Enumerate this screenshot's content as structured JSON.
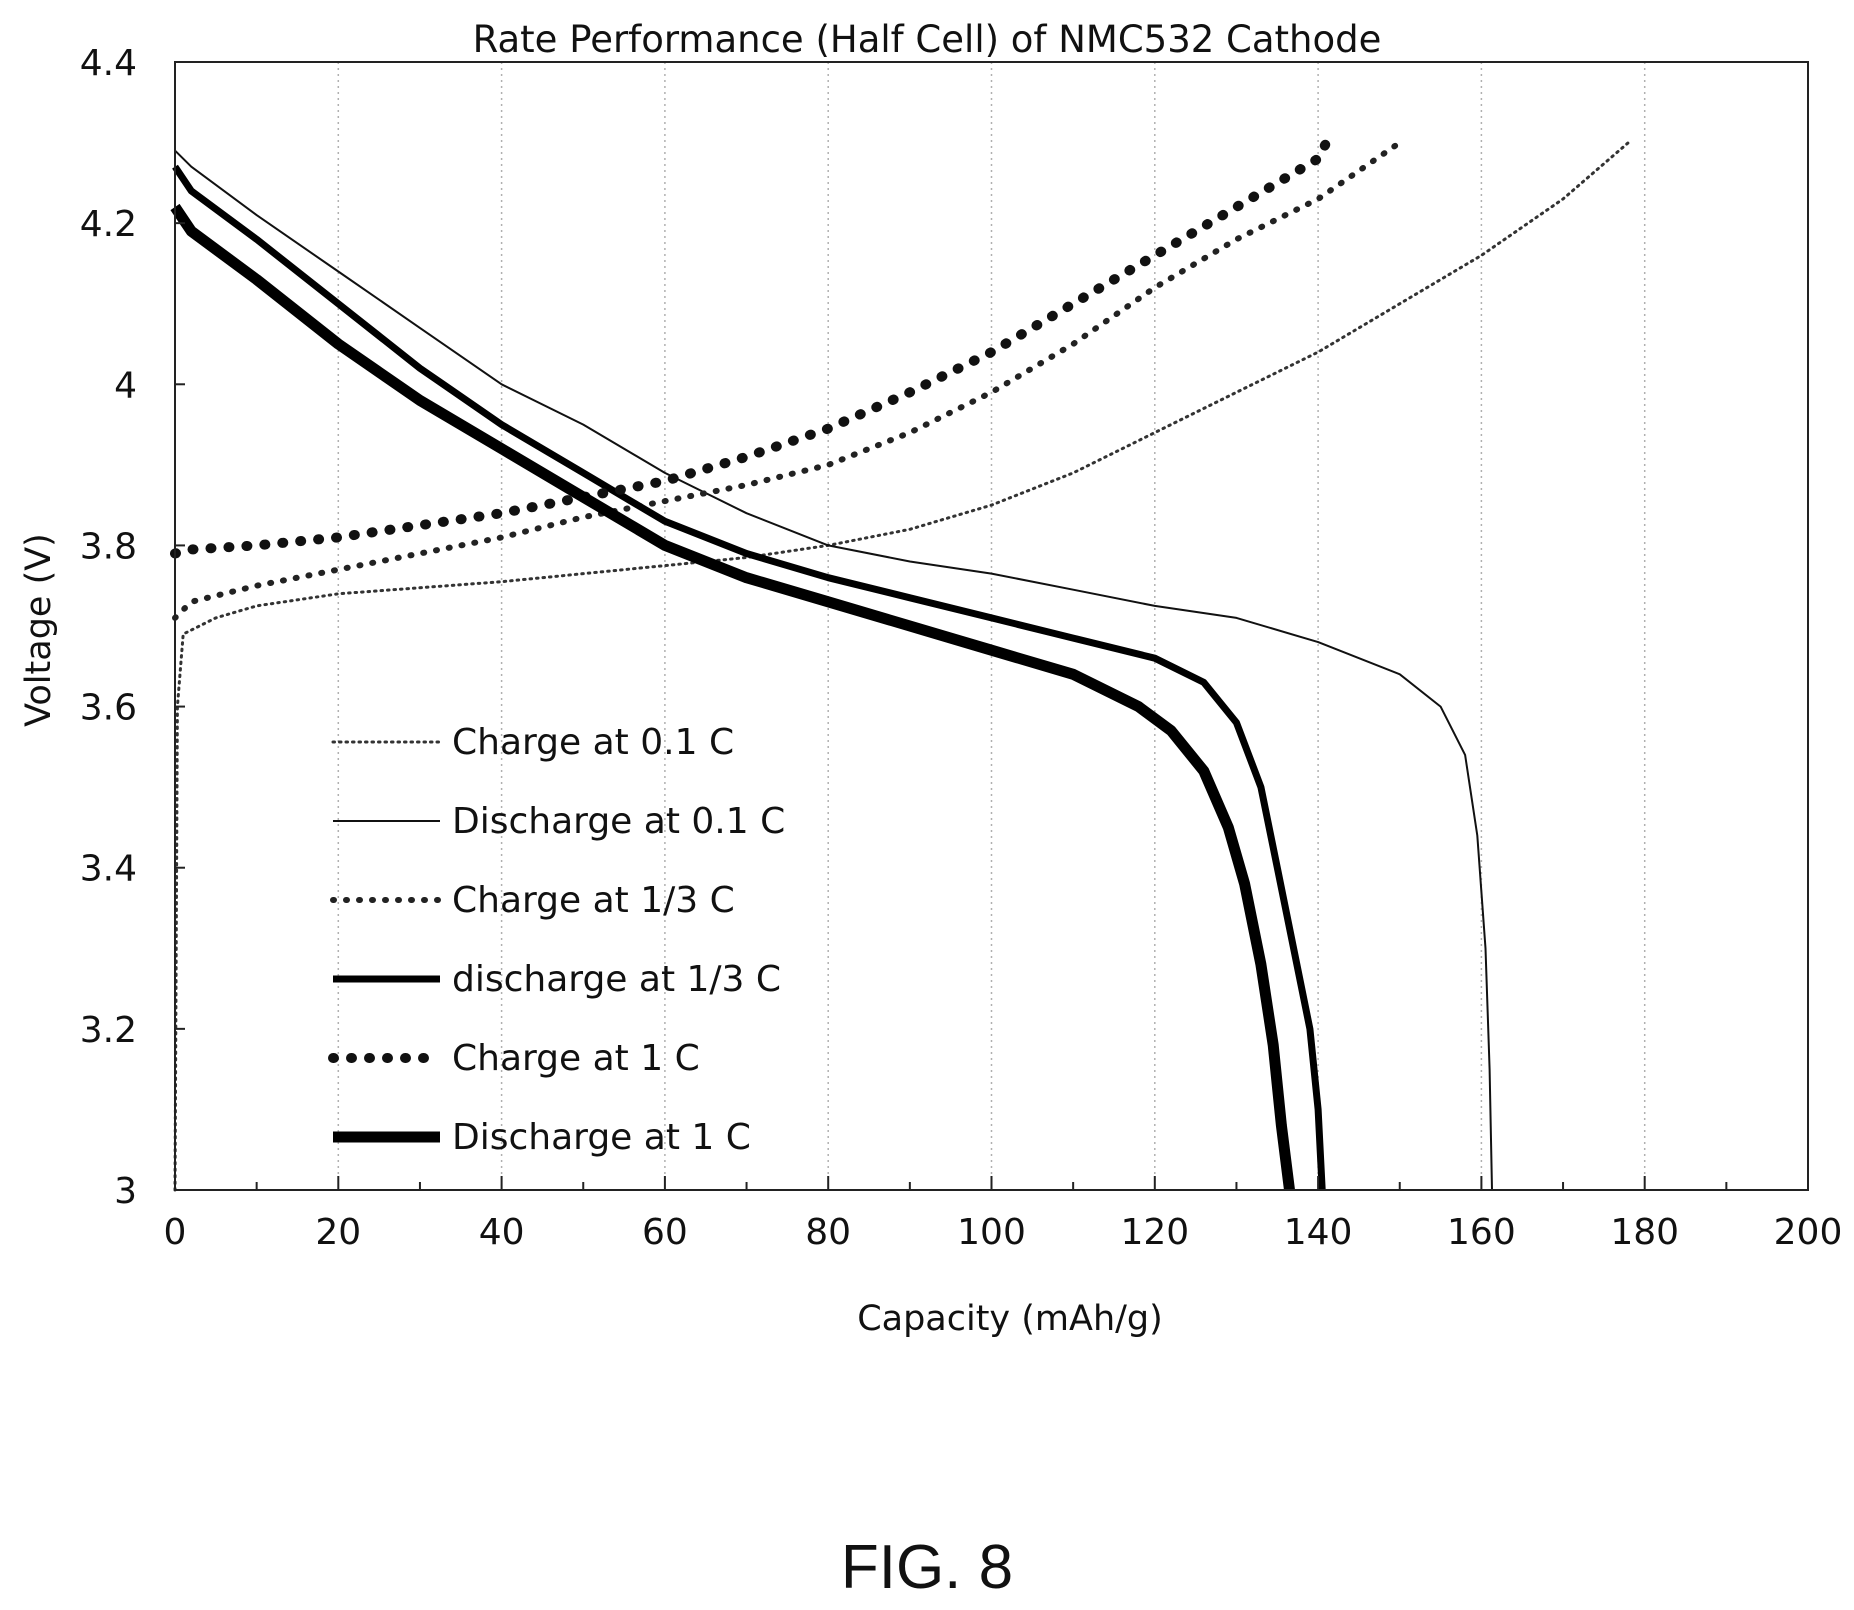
{
  "figure_label": "FIG. 8",
  "chart_data": {
    "type": "line",
    "title": "Rate Performance (Half Cell) of NMC532 Cathode",
    "xlabel": "Capacity (mAh/g)",
    "ylabel": "Voltage (V)",
    "xlim": [
      0,
      200
    ],
    "ylim": [
      3,
      4.4
    ],
    "x_ticks": [
      "0",
      "20",
      "40",
      "60",
      "80",
      "100",
      "120",
      "140",
      "160",
      "180",
      "200"
    ],
    "y_ticks": [
      "3",
      "3.2",
      "3.4",
      "3.6",
      "3.8",
      "4",
      "4.2",
      "4.4"
    ],
    "grid": "vertical dotted",
    "legend_position": "lower-left",
    "series": [
      {
        "name": "Charge at 0.1 C",
        "style": "fine-dotted",
        "color": "#333333",
        "points": [
          [
            0,
            3.0
          ],
          [
            0.3,
            3.6
          ],
          [
            1,
            3.69
          ],
          [
            5,
            3.71
          ],
          [
            10,
            3.725
          ],
          [
            20,
            3.74
          ],
          [
            40,
            3.755
          ],
          [
            60,
            3.775
          ],
          [
            70,
            3.785
          ],
          [
            80,
            3.8
          ],
          [
            90,
            3.82
          ],
          [
            100,
            3.85
          ],
          [
            110,
            3.89
          ],
          [
            120,
            3.94
          ],
          [
            130,
            3.99
          ],
          [
            140,
            4.04
          ],
          [
            150,
            4.1
          ],
          [
            160,
            4.16
          ],
          [
            170,
            4.23
          ],
          [
            178,
            4.3
          ]
        ]
      },
      {
        "name": "Discharge at 0.1 C",
        "style": "thin-solid",
        "color": "#111111",
        "points": [
          [
            0,
            4.29
          ],
          [
            2,
            4.27
          ],
          [
            10,
            4.21
          ],
          [
            20,
            4.14
          ],
          [
            30,
            4.07
          ],
          [
            40,
            4.0
          ],
          [
            50,
            3.95
          ],
          [
            60,
            3.89
          ],
          [
            70,
            3.84
          ],
          [
            80,
            3.8
          ],
          [
            90,
            3.78
          ],
          [
            100,
            3.765
          ],
          [
            110,
            3.745
          ],
          [
            120,
            3.725
          ],
          [
            130,
            3.71
          ],
          [
            140,
            3.68
          ],
          [
            150,
            3.64
          ],
          [
            155,
            3.6
          ],
          [
            158,
            3.54
          ],
          [
            159.5,
            3.44
          ],
          [
            160.5,
            3.3
          ],
          [
            161,
            3.15
          ],
          [
            161.3,
            3.0
          ]
        ]
      },
      {
        "name": "Charge at 1/3 C",
        "style": "dotted",
        "color": "#222222",
        "points": [
          [
            0,
            3.71
          ],
          [
            2,
            3.73
          ],
          [
            10,
            3.75
          ],
          [
            20,
            3.77
          ],
          [
            30,
            3.79
          ],
          [
            40,
            3.81
          ],
          [
            50,
            3.835
          ],
          [
            60,
            3.855
          ],
          [
            70,
            3.875
          ],
          [
            80,
            3.9
          ],
          [
            90,
            3.94
          ],
          [
            100,
            3.99
          ],
          [
            110,
            4.05
          ],
          [
            120,
            4.12
          ],
          [
            130,
            4.18
          ],
          [
            140,
            4.23
          ],
          [
            150,
            4.3
          ]
        ]
      },
      {
        "name": "discharge at 1/3 C",
        "style": "thick-solid",
        "color": "#000000",
        "points": [
          [
            0,
            4.27
          ],
          [
            2,
            4.24
          ],
          [
            10,
            4.18
          ],
          [
            20,
            4.1
          ],
          [
            30,
            4.02
          ],
          [
            40,
            3.95
          ],
          [
            50,
            3.89
          ],
          [
            60,
            3.83
          ],
          [
            70,
            3.79
          ],
          [
            80,
            3.76
          ],
          [
            90,
            3.735
          ],
          [
            100,
            3.71
          ],
          [
            110,
            3.685
          ],
          [
            120,
            3.66
          ],
          [
            126,
            3.63
          ],
          [
            130,
            3.58
          ],
          [
            133,
            3.5
          ],
          [
            135,
            3.4
          ],
          [
            137,
            3.3
          ],
          [
            139,
            3.2
          ],
          [
            140,
            3.1
          ],
          [
            140.5,
            3.0
          ]
        ]
      },
      {
        "name": "Charge at 1 C",
        "style": "bold-dotted",
        "color": "#111111",
        "points": [
          [
            0,
            3.79
          ],
          [
            2,
            3.795
          ],
          [
            10,
            3.8
          ],
          [
            20,
            3.81
          ],
          [
            30,
            3.825
          ],
          [
            40,
            3.84
          ],
          [
            50,
            3.86
          ],
          [
            60,
            3.88
          ],
          [
            70,
            3.91
          ],
          [
            80,
            3.945
          ],
          [
            90,
            3.99
          ],
          [
            100,
            4.04
          ],
          [
            110,
            4.1
          ],
          [
            120,
            4.16
          ],
          [
            130,
            4.22
          ],
          [
            140,
            4.28
          ],
          [
            141,
            4.3
          ]
        ]
      },
      {
        "name": "Discharge at 1 C",
        "style": "extra-thick-solid",
        "color": "#000000",
        "points": [
          [
            0,
            4.22
          ],
          [
            2,
            4.19
          ],
          [
            10,
            4.13
          ],
          [
            20,
            4.05
          ],
          [
            30,
            3.98
          ],
          [
            40,
            3.92
          ],
          [
            50,
            3.86
          ],
          [
            60,
            3.8
          ],
          [
            70,
            3.76
          ],
          [
            80,
            3.73
          ],
          [
            90,
            3.7
          ],
          [
            100,
            3.67
          ],
          [
            110,
            3.64
          ],
          [
            118,
            3.6
          ],
          [
            122,
            3.57
          ],
          [
            126,
            3.52
          ],
          [
            129,
            3.45
          ],
          [
            131,
            3.38
          ],
          [
            133,
            3.28
          ],
          [
            134.5,
            3.18
          ],
          [
            135.5,
            3.08
          ],
          [
            136.5,
            3.0
          ]
        ]
      }
    ]
  }
}
